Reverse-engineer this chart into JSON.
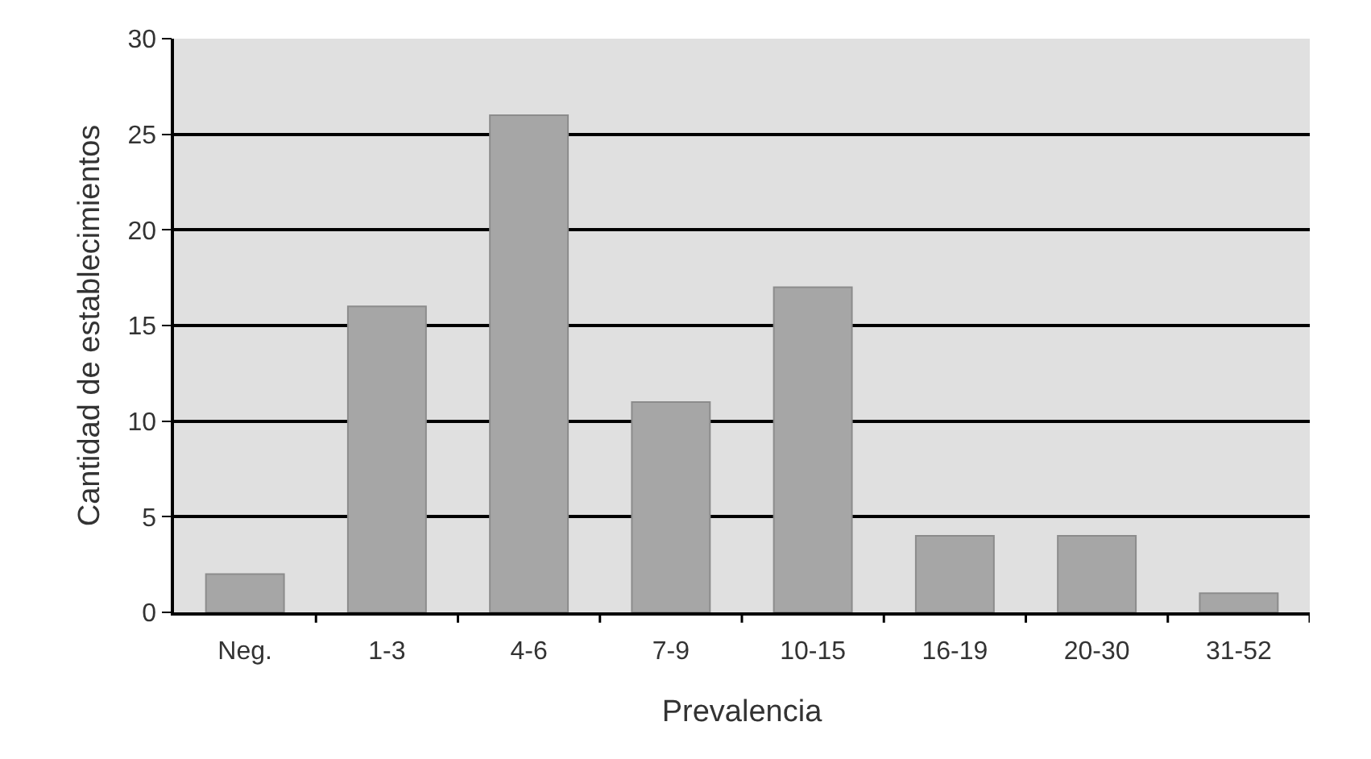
{
  "chart_data": {
    "type": "bar",
    "xlabel": "Prevalencia",
    "ylabel": "Cantidad de establecimientos",
    "categories": [
      "Neg.",
      "1-3",
      "4-6",
      "7-9",
      "10-15",
      "16-19",
      "20-30",
      "31-52"
    ],
    "values": [
      2,
      16,
      26,
      11,
      17,
      4,
      4,
      1
    ],
    "color": "#a6a6a6",
    "ylim": [
      0,
      30
    ],
    "yticks": [
      0,
      5,
      10,
      15,
      20,
      25,
      30
    ],
    "grid": "y",
    "legend": false
  }
}
